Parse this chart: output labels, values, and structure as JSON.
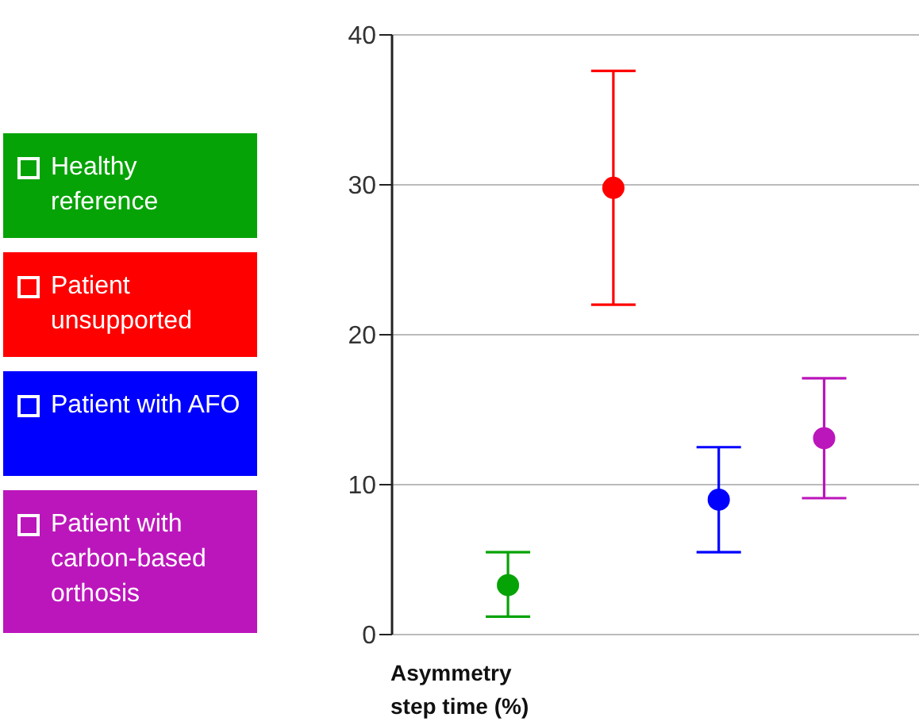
{
  "chart_data": {
    "type": "scatter",
    "xlabel": "Asymmetry step time (%)",
    "categories": [
      null,
      null,
      null,
      null
    ],
    "series": [
      {
        "name": "Healthy reference",
        "color": "#06a306",
        "values": [
          3.3,
          null,
          null,
          null
        ],
        "errors": [
          [
            1.2,
            5.5
          ],
          null,
          null,
          null
        ]
      },
      {
        "name": "Patient unsupported",
        "color": "#ff0000",
        "values": [
          null,
          29.8,
          null,
          null
        ],
        "errors": [
          null,
          [
            22,
            37.6
          ],
          null,
          null
        ]
      },
      {
        "name": "Patient with AFO",
        "color": "#0000ff",
        "values": [
          null,
          null,
          9,
          null
        ],
        "errors": [
          null,
          null,
          [
            5.5,
            12.5
          ],
          null
        ]
      },
      {
        "name": "Patient with carbon-based orthosis",
        "color": "#bb16bb",
        "values": [
          null,
          null,
          null,
          13.1
        ],
        "errors": [
          null,
          null,
          null,
          [
            9.1,
            17.1
          ]
        ]
      }
    ],
    "ylim": [
      0,
      40
    ],
    "yticks": [
      0,
      10,
      20,
      30,
      40
    ],
    "grid": "y",
    "legend": "left",
    "marker": "circle"
  }
}
